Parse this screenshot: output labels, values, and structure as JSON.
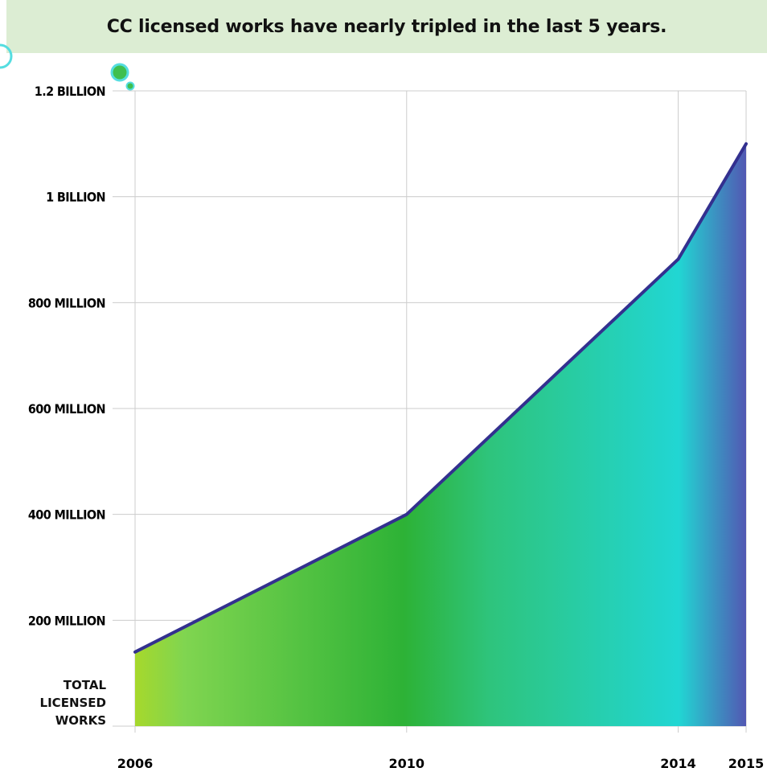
{
  "banner": {
    "title": "CC licensed works have nearly tripled in the last 5 years."
  },
  "chart_data": {
    "type": "area",
    "title": "CC licensed works have nearly tripled in the last 5 years.",
    "x": [
      2006,
      2010,
      2014,
      2015
    ],
    "xtick_labels": [
      "2006",
      "2010",
      "2014",
      "2015"
    ],
    "series": [
      {
        "values": [
          140000000,
          400000000,
          882000000,
          1100000000
        ]
      }
    ],
    "yticks": [
      200000000,
      400000000,
      600000000,
      800000000,
      1000000000,
      1200000000
    ],
    "ytick_labels": [
      "200 MILLION",
      "400 MILLION",
      "600 MILLION",
      "800 MILLION",
      "1 BILLION",
      "1.2 BILLION"
    ],
    "ylabel_lines": [
      "TOTAL",
      "LICENSED",
      "WORKS"
    ],
    "ylim": [
      0,
      1200000000
    ],
    "xlim": [
      2006,
      2015
    ],
    "grid": true,
    "colors": {
      "line": "#33308f",
      "gradient": [
        "#a6d82c",
        "#80d550",
        "#2db236",
        "#2ec47c",
        "#21d6d3",
        "#5258b3"
      ],
      "grid": "#cccccc",
      "banner": "#dcedd3",
      "decor_circle": "#3fbf4f",
      "decor_ring": "#55dde0"
    }
  }
}
